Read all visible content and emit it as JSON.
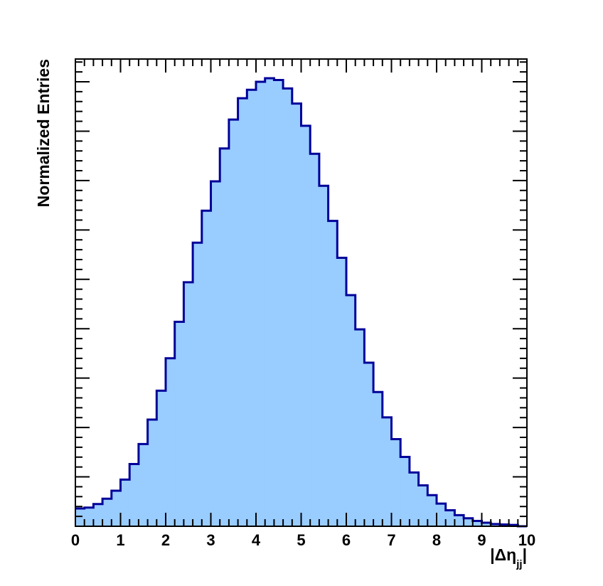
{
  "chart_data": {
    "type": "histogram",
    "title": "",
    "xlabel": "|Δη_jj|",
    "xlabel_parts": {
      "open": "|Δη",
      "sub": "jj",
      "close": "|"
    },
    "ylabel": "Normalized Entries",
    "xlim": [
      0,
      10
    ],
    "ylim": [
      0,
      1.0
    ],
    "x_ticks": [
      "0",
      "1",
      "2",
      "3",
      "4",
      "5",
      "6",
      "7",
      "8",
      "9",
      "10"
    ],
    "y_tick_labels_shown": false,
    "grid": false,
    "fill_color": "#99ccff",
    "line_color": "#000099",
    "bin_width": 0.2,
    "values": [
      0.04,
      0.042,
      0.05,
      0.062,
      0.08,
      0.105,
      0.14,
      0.185,
      0.24,
      0.305,
      0.378,
      0.46,
      0.549,
      0.638,
      0.71,
      0.776,
      0.85,
      0.915,
      0.963,
      0.982,
      1.0,
      1.008,
      1.004,
      0.985,
      0.951,
      0.901,
      0.838,
      0.766,
      0.687,
      0.604,
      0.52,
      0.443,
      0.368,
      0.302,
      0.245,
      0.196,
      0.156,
      0.121,
      0.092,
      0.07,
      0.051,
      0.036,
      0.025,
      0.018,
      0.012,
      0.008,
      0.005,
      0.004,
      0.003,
      0.0
    ]
  }
}
